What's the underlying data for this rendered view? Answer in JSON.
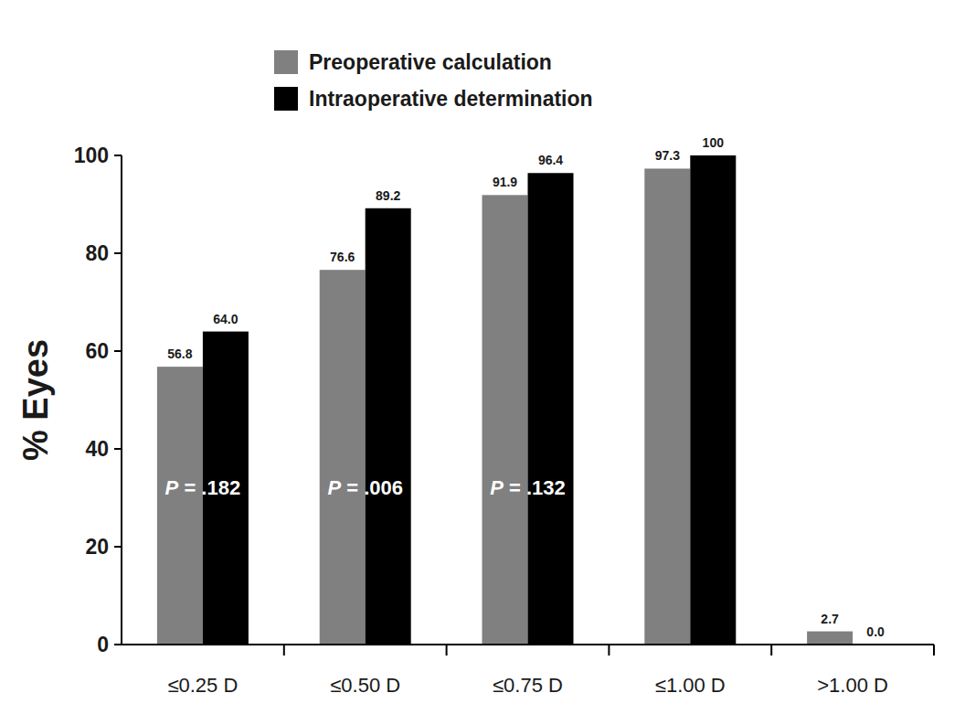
{
  "chart_data": {
    "type": "bar",
    "y_label": "% Eyes",
    "categories": [
      "≤0.25 D",
      "≤0.50 D",
      "≤0.75 D",
      "≤1.00 D",
      ">1.00 D"
    ],
    "series": [
      {
        "name": "Preoperative calculation",
        "color": "#808080",
        "values": [
          56.8,
          76.6,
          91.9,
          97.3,
          2.7
        ]
      },
      {
        "name": "Intraoperative determination",
        "color": "#000000",
        "values": [
          64.0,
          89.2,
          96.4,
          100,
          0.0
        ],
        "value_labels": [
          "64.0",
          "89.2",
          "96.4",
          "100",
          "0.0"
        ]
      }
    ],
    "annotations": [
      {
        "text": "P = .182",
        "category": "≤0.25 D"
      },
      {
        "text": "P = .006",
        "category": "≤0.50 D"
      },
      {
        "text": "P = .132",
        "category": "≤0.75 D"
      }
    ],
    "ylim": [
      0,
      100
    ],
    "yticks": [
      0,
      20,
      40,
      60,
      80,
      100
    ],
    "grid": false,
    "legend": "top",
    "data_labels": true
  }
}
